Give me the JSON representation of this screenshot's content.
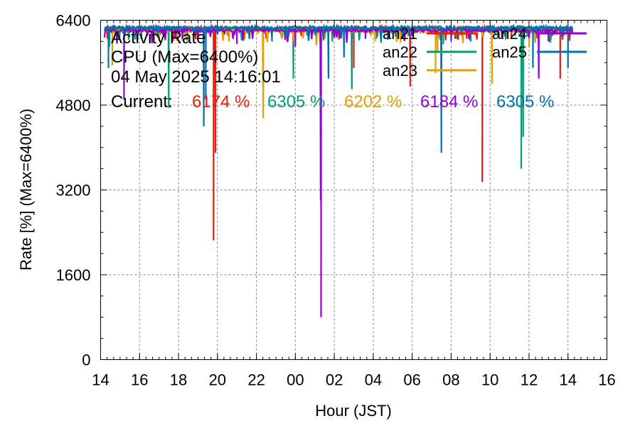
{
  "chart_data": {
    "type": "line",
    "title_lines": [
      "Activity Rate",
      "CPU (Max=6400%)",
      "04 May 2025 14:16:01"
    ],
    "current_label": "Current:",
    "xlabel": "Hour (JST)",
    "ylabel": "Rate [%]  (Max=6400%)",
    "ylim": [
      0,
      6400
    ],
    "yticks": [
      0,
      1600,
      3200,
      4800,
      6400
    ],
    "xlim": [
      14,
      40
    ],
    "xtick_values": [
      14,
      16,
      18,
      20,
      22,
      24,
      26,
      28,
      30,
      32,
      34,
      36,
      38,
      40
    ],
    "xtick_labels": [
      "14",
      "16",
      "18",
      "20",
      "22",
      "00",
      "02",
      "04",
      "06",
      "08",
      "10",
      "12",
      "14",
      "16"
    ],
    "grid": true,
    "legend_position": "top-right",
    "x_start": 14.2,
    "x_end": 38.27,
    "series": [
      {
        "name": "an21",
        "color": "#e51e10",
        "current": "6174 %",
        "baseline": 6250,
        "dips": [
          [
            14.35,
            6050
          ],
          [
            19.8,
            2250
          ],
          [
            19.9,
            3900
          ],
          [
            22.5,
            6050
          ],
          [
            24.3,
            6100
          ],
          [
            27.0,
            5500
          ],
          [
            29.9,
            5150
          ],
          [
            32.2,
            6050
          ],
          [
            33.6,
            3350
          ],
          [
            35.1,
            6050
          ],
          [
            37.6,
            5300
          ],
          [
            38.2,
            6150
          ]
        ]
      },
      {
        "name": "an22",
        "color": "#009e73",
        "current": "6305 %",
        "baseline": 6230,
        "dips": [
          [
            14.45,
            5900
          ],
          [
            16.1,
            6050
          ],
          [
            17.5,
            4750
          ],
          [
            23.9,
            5300
          ],
          [
            25.9,
            6000
          ],
          [
            26.9,
            5100
          ],
          [
            29.2,
            6050
          ],
          [
            31.6,
            5950
          ],
          [
            35.6,
            3600
          ],
          [
            35.7,
            4200
          ],
          [
            37.2,
            6100
          ]
        ]
      },
      {
        "name": "an23",
        "color": "#e69f00",
        "current": "6202 %",
        "baseline": 6200,
        "dips": [
          [
            14.6,
            5550
          ],
          [
            17.0,
            6000
          ],
          [
            18.4,
            6050
          ],
          [
            20.6,
            6050
          ],
          [
            22.35,
            4550
          ],
          [
            23.3,
            6050
          ],
          [
            26.0,
            6100
          ],
          [
            28.1,
            6000
          ],
          [
            31.2,
            5400
          ],
          [
            31.3,
            5800
          ],
          [
            34.1,
            5200
          ],
          [
            36.0,
            5900
          ],
          [
            37.8,
            6100
          ]
        ]
      },
      {
        "name": "an24",
        "color": "#9400d3",
        "current": "6184 %",
        "baseline": 6210,
        "dips": [
          [
            15.2,
            4900
          ],
          [
            18.2,
            6050
          ],
          [
            21.0,
            5950
          ],
          [
            24.0,
            5900
          ],
          [
            25.3,
            3000
          ],
          [
            25.32,
            800
          ],
          [
            27.6,
            6050
          ],
          [
            32.0,
            6000
          ],
          [
            34.6,
            6050
          ],
          [
            36.5,
            5300
          ],
          [
            37.0,
            6000
          ]
        ]
      },
      {
        "name": "an25",
        "color": "#0072b2",
        "current": "6305 %",
        "baseline": 6260,
        "dips": [
          [
            14.4,
            5500
          ],
          [
            19.3,
            4400
          ],
          [
            19.4,
            4900
          ],
          [
            22.8,
            6000
          ],
          [
            25.7,
            5300
          ],
          [
            26.5,
            5700
          ],
          [
            29.5,
            6050
          ],
          [
            31.5,
            3900
          ],
          [
            33.0,
            6000
          ],
          [
            34.8,
            6050
          ],
          [
            36.2,
            5500
          ],
          [
            38.0,
            5500
          ]
        ]
      }
    ]
  }
}
